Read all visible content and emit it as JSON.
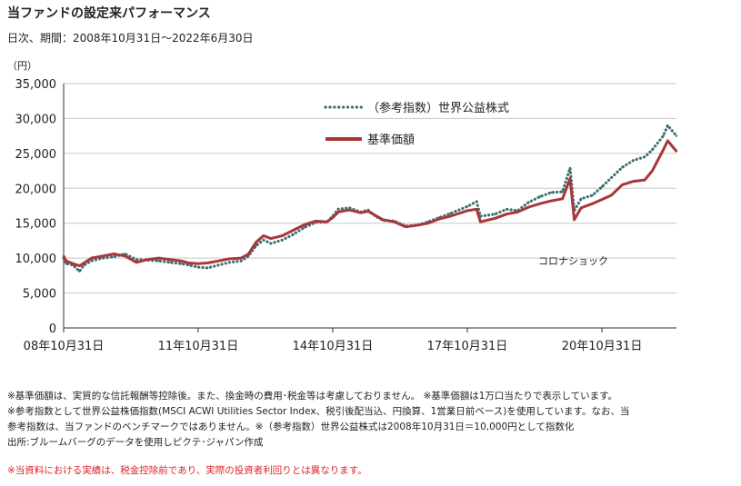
{
  "title": "当ファンドの設定来パフォーマンス",
  "subtitle": "日次、期間：2008年10月31日～2022年6月30日",
  "chart_data": {
    "type": "line",
    "yunit": "（円）",
    "ylim": [
      0,
      35000
    ],
    "yticks": [
      0,
      5000,
      10000,
      15000,
      20000,
      25000,
      30000,
      35000
    ],
    "ytick_labels": [
      "0",
      "5,000",
      "10,000",
      "15,000",
      "20,000",
      "25,000",
      "30,000",
      "35,000"
    ],
    "xlim": [
      "2008-10-31",
      "2022-06-30"
    ],
    "xticks": [
      "2008-10-31",
      "2011-10-31",
      "2014-10-31",
      "2017-10-31",
      "2020-10-31"
    ],
    "xtick_labels": [
      "08年10月31日",
      "11年10月31日",
      "14年10月31日",
      "17年10月31日",
      "20年10月31日"
    ],
    "legend_position": "top-center",
    "annotation": "コロナショック",
    "annotation_date": "2020-04-01",
    "series": [
      {
        "name": "（参考指数）世界公益株式",
        "color": "#3e7070",
        "style": "dotted",
        "points": [
          [
            "2008-10-31",
            10000
          ],
          [
            "2008-11-20",
            9200
          ],
          [
            "2009-01-15",
            9000
          ],
          [
            "2009-03-09",
            8100
          ],
          [
            "2009-04-15",
            9000
          ],
          [
            "2009-06-15",
            9600
          ],
          [
            "2009-09-15",
            10000
          ],
          [
            "2009-12-15",
            10200
          ],
          [
            "2010-03-15",
            10600
          ],
          [
            "2010-06-15",
            9800
          ],
          [
            "2010-09-15",
            9700
          ],
          [
            "2010-12-15",
            9600
          ],
          [
            "2011-03-15",
            9400
          ],
          [
            "2011-06-15",
            9200
          ],
          [
            "2011-08-15",
            9000
          ],
          [
            "2011-10-31",
            8700
          ],
          [
            "2012-01-15",
            8600
          ],
          [
            "2012-04-15",
            9000
          ],
          [
            "2012-07-15",
            9400
          ],
          [
            "2012-10-15",
            9600
          ],
          [
            "2012-12-15",
            10300
          ],
          [
            "2013-02-15",
            11800
          ],
          [
            "2013-04-15",
            12600
          ],
          [
            "2013-06-15",
            12100
          ],
          [
            "2013-09-15",
            12600
          ],
          [
            "2013-12-15",
            13400
          ],
          [
            "2014-03-15",
            14400
          ],
          [
            "2014-06-15",
            15100
          ],
          [
            "2014-09-15",
            15200
          ],
          [
            "2014-10-31",
            16000
          ],
          [
            "2014-12-15",
            17000
          ],
          [
            "2015-03-15",
            17200
          ],
          [
            "2015-06-15",
            16600
          ],
          [
            "2015-08-15",
            16900
          ],
          [
            "2015-10-15",
            16000
          ],
          [
            "2015-12-15",
            15400
          ],
          [
            "2016-03-15",
            15300
          ],
          [
            "2016-06-15",
            14600
          ],
          [
            "2016-09-15",
            14700
          ],
          [
            "2016-12-15",
            15200
          ],
          [
            "2017-03-15",
            15800
          ],
          [
            "2017-06-15",
            16400
          ],
          [
            "2017-10-31",
            17400
          ],
          [
            "2018-01-15",
            18100
          ],
          [
            "2018-02-15",
            16000
          ],
          [
            "2018-06-15",
            16300
          ],
          [
            "2018-09-15",
            17000
          ],
          [
            "2018-12-15",
            16800
          ],
          [
            "2019-03-15",
            18000
          ],
          [
            "2019-06-15",
            18800
          ],
          [
            "2019-09-15",
            19400
          ],
          [
            "2019-12-15",
            19500
          ],
          [
            "2020-02-15",
            22900
          ],
          [
            "2020-03-20",
            16800
          ],
          [
            "2020-05-15",
            18500
          ],
          [
            "2020-08-15",
            19000
          ],
          [
            "2020-10-31",
            20200
          ],
          [
            "2021-01-15",
            21500
          ],
          [
            "2021-04-15",
            23000
          ],
          [
            "2021-07-15",
            24000
          ],
          [
            "2021-10-15",
            24500
          ],
          [
            "2021-12-15",
            25500
          ],
          [
            "2022-03-15",
            27500
          ],
          [
            "2022-04-20",
            29000
          ],
          [
            "2022-06-30",
            27500
          ]
        ]
      },
      {
        "name": "基準価額",
        "color": "#a8373a",
        "style": "solid",
        "points": [
          [
            "2008-10-31",
            10300
          ],
          [
            "2008-11-20",
            9600
          ],
          [
            "2009-01-15",
            9200
          ],
          [
            "2009-03-09",
            8900
          ],
          [
            "2009-04-15",
            9300
          ],
          [
            "2009-06-15",
            10000
          ],
          [
            "2009-09-15",
            10300
          ],
          [
            "2009-12-15",
            10600
          ],
          [
            "2010-03-15",
            10300
          ],
          [
            "2010-06-15",
            9400
          ],
          [
            "2010-09-15",
            9800
          ],
          [
            "2010-12-15",
            10000
          ],
          [
            "2011-03-15",
            9800
          ],
          [
            "2011-06-15",
            9600
          ],
          [
            "2011-08-15",
            9300
          ],
          [
            "2011-10-31",
            9200
          ],
          [
            "2012-01-15",
            9300
          ],
          [
            "2012-04-15",
            9600
          ],
          [
            "2012-07-15",
            9900
          ],
          [
            "2012-10-15",
            10000
          ],
          [
            "2012-12-15",
            10600
          ],
          [
            "2013-02-15",
            12300
          ],
          [
            "2013-04-15",
            13200
          ],
          [
            "2013-06-15",
            12800
          ],
          [
            "2013-09-15",
            13200
          ],
          [
            "2013-12-15",
            14000
          ],
          [
            "2014-03-15",
            14800
          ],
          [
            "2014-06-15",
            15300
          ],
          [
            "2014-09-15",
            15200
          ],
          [
            "2014-10-31",
            15800
          ],
          [
            "2014-12-15",
            16600
          ],
          [
            "2015-03-15",
            16900
          ],
          [
            "2015-06-15",
            16500
          ],
          [
            "2015-08-15",
            16700
          ],
          [
            "2015-10-15",
            16100
          ],
          [
            "2015-12-15",
            15500
          ],
          [
            "2016-03-15",
            15200
          ],
          [
            "2016-06-15",
            14500
          ],
          [
            "2016-09-15",
            14700
          ],
          [
            "2016-12-15",
            15000
          ],
          [
            "2017-03-15",
            15600
          ],
          [
            "2017-06-15",
            16000
          ],
          [
            "2017-10-31",
            16800
          ],
          [
            "2018-01-15",
            17000
          ],
          [
            "2018-02-15",
            15200
          ],
          [
            "2018-06-15",
            15700
          ],
          [
            "2018-09-15",
            16300
          ],
          [
            "2018-12-15",
            16600
          ],
          [
            "2019-03-15",
            17300
          ],
          [
            "2019-06-15",
            17800
          ],
          [
            "2019-09-15",
            18200
          ],
          [
            "2019-12-15",
            18500
          ],
          [
            "2020-02-15",
            21400
          ],
          [
            "2020-03-20",
            15500
          ],
          [
            "2020-05-15",
            17200
          ],
          [
            "2020-08-15",
            17800
          ],
          [
            "2020-10-31",
            18400
          ],
          [
            "2021-01-15",
            19000
          ],
          [
            "2021-04-15",
            20500
          ],
          [
            "2021-07-15",
            21000
          ],
          [
            "2021-10-15",
            21200
          ],
          [
            "2021-12-15",
            22500
          ],
          [
            "2022-03-15",
            25500
          ],
          [
            "2022-04-20",
            26800
          ],
          [
            "2022-06-30",
            25300
          ]
        ]
      }
    ]
  },
  "notes": [
    "※基準価額は、実質的な信託報酬等控除後。また、換金時の費用･税金等は考慮しておりません。 ※基準価額は1万口当たりで表示しています。",
    "※参考指数として世界公益株価指数(MSCI ACWI Utilities Sector Index、税引後配当込、円換算、1営業日前ベース)を使用しています。なお、当",
    "参考指数は、当ファンドのベンチマークではありません。※（参考指数）世界公益株式は2008年10月31日＝10,000円として指数化",
    "出所:ブルームバーグのデータを使用しピクテ･ジャパン作成"
  ],
  "disclaimer": "※当資料における実績は、税金控除前であり、実際の投資者利回りとは異なります。"
}
